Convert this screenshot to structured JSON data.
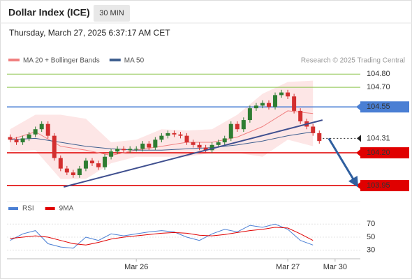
{
  "header": {
    "title": "Dollar Index (ICE)",
    "timeframe": "30 MIN",
    "timestamp": "Thursday, March 27, 2025 6:37:17 AM CET"
  },
  "chart_data": [
    {
      "type": "candlestick",
      "watermark": "Research © 2025 Trading Central",
      "up_color": "#2e7d32",
      "down_color": "#d32f2f",
      "xlim": [
        -1,
        111
      ],
      "ylim": [
        103.86,
        104.86
      ],
      "xticks": [
        {
          "value": 40,
          "label": "Mar 26"
        },
        {
          "value": 88,
          "label": "Mar 27"
        },
        {
          "value": 103,
          "label": "Mar 30"
        }
      ],
      "x": [
        0,
        2,
        4,
        6,
        8,
        10,
        12,
        14,
        16,
        18,
        20,
        22,
        24,
        26,
        28,
        30,
        32,
        34,
        36,
        38,
        40,
        42,
        44,
        46,
        48,
        50,
        52,
        54,
        56,
        58,
        60,
        62,
        64,
        66,
        68,
        70,
        72,
        74,
        76,
        78,
        80,
        82,
        84,
        86,
        88,
        90,
        92,
        94,
        96,
        98
      ],
      "open": [
        104.32,
        104.3,
        104.28,
        104.31,
        104.34,
        104.38,
        104.42,
        104.33,
        104.16,
        104.08,
        104.05,
        104.03,
        104.08,
        104.14,
        104.12,
        104.09,
        104.17,
        104.21,
        104.23,
        104.22,
        104.23,
        104.23,
        104.27,
        104.24,
        104.3,
        104.33,
        104.35,
        104.34,
        104.33,
        104.28,
        104.26,
        104.24,
        104.22,
        104.26,
        104.28,
        104.31,
        104.42,
        104.38,
        104.45,
        104.54,
        104.56,
        104.58,
        104.55,
        104.64,
        104.66,
        104.63,
        104.52,
        104.44,
        104.4,
        104.35
      ],
      "high": [
        104.34,
        104.32,
        104.33,
        104.36,
        104.4,
        104.44,
        104.44,
        104.35,
        104.18,
        104.1,
        104.07,
        104.1,
        104.16,
        104.16,
        104.14,
        104.19,
        104.23,
        104.25,
        104.25,
        104.25,
        104.25,
        104.29,
        104.29,
        104.32,
        104.35,
        104.37,
        104.37,
        104.36,
        104.35,
        104.3,
        104.28,
        104.26,
        104.28,
        104.3,
        104.33,
        104.44,
        104.44,
        104.47,
        104.56,
        104.58,
        104.6,
        104.6,
        104.66,
        104.68,
        104.68,
        104.65,
        104.54,
        104.46,
        104.42,
        104.37
      ],
      "low": [
        104.28,
        104.26,
        104.26,
        104.29,
        104.32,
        104.36,
        104.31,
        104.14,
        104.06,
        104.03,
        104.01,
        104.01,
        104.06,
        104.1,
        104.07,
        104.07,
        104.15,
        104.19,
        104.2,
        104.2,
        104.21,
        104.21,
        104.22,
        104.22,
        104.28,
        104.31,
        104.32,
        104.31,
        104.26,
        104.24,
        104.22,
        104.2,
        104.2,
        104.24,
        104.26,
        104.29,
        104.36,
        104.36,
        104.43,
        104.52,
        104.54,
        104.53,
        104.53,
        104.62,
        104.61,
        104.5,
        104.42,
        104.38,
        104.33,
        104.27
      ],
      "close": [
        104.3,
        104.28,
        104.31,
        104.34,
        104.38,
        104.42,
        104.33,
        104.16,
        104.08,
        104.05,
        104.03,
        104.08,
        104.14,
        104.12,
        104.09,
        104.17,
        104.21,
        104.23,
        104.22,
        104.23,
        104.23,
        104.27,
        104.24,
        104.3,
        104.33,
        104.35,
        104.34,
        104.33,
        104.28,
        104.26,
        104.24,
        104.22,
        104.26,
        104.28,
        104.31,
        104.42,
        104.38,
        104.45,
        104.54,
        104.56,
        104.58,
        104.55,
        104.64,
        104.66,
        104.63,
        104.52,
        104.44,
        104.4,
        104.35,
        104.29
      ],
      "overlays": [
        {
          "name": "MA 20 + Bollinger Bands",
          "color": "#f08080",
          "band_color": "#fde0e0",
          "x": [
            0,
            8,
            16,
            24,
            32,
            40,
            48,
            56,
            64,
            72,
            80,
            88,
            96
          ],
          "values": [
            104.3,
            104.36,
            104.25,
            104.22,
            104.18,
            104.22,
            104.25,
            104.28,
            104.28,
            104.32,
            104.4,
            104.52,
            104.5
          ],
          "upper": [
            104.38,
            104.49,
            104.49,
            104.46,
            104.28,
            104.3,
            104.38,
            104.37,
            104.38,
            104.49,
            104.65,
            104.74,
            104.75
          ],
          "lower": [
            104.21,
            104.22,
            104.0,
            104.0,
            104.12,
            104.17,
            104.17,
            104.17,
            104.2,
            104.2,
            104.17,
            104.3,
            104.25
          ]
        },
        {
          "name": "MA 50",
          "color": "#3f5f8f",
          "x": [
            0,
            8,
            16,
            24,
            32,
            40,
            48,
            56,
            64,
            72,
            80,
            88,
            96
          ],
          "values": [
            104.3,
            104.31,
            104.28,
            104.25,
            104.23,
            104.22,
            104.22,
            104.23,
            104.24,
            104.26,
            104.29,
            104.33,
            104.36
          ]
        }
      ],
      "trendline": {
        "color": "#3f4f8f",
        "x": [
          17,
          99
        ],
        "values": [
          103.94,
          104.45
        ]
      },
      "arrow": {
        "color": "#2f5f9f",
        "x": [
          101,
          110
        ],
        "values": [
          104.31,
          103.95
        ]
      },
      "levels": [
        {
          "value": 104.8,
          "label": "104.80",
          "color": "#8bc34a",
          "label_style": "text"
        },
        {
          "value": 104.7,
          "label": "104.70",
          "color": "#8bc34a",
          "label_style": "text"
        },
        {
          "value": 104.55,
          "label": "104.55",
          "color": "#4a7fd4",
          "label_style": "box"
        },
        {
          "value": 104.31,
          "label": "104.31",
          "color": "#222222",
          "label_style": "pointer",
          "dash": true
        },
        {
          "value": 104.2,
          "label": "104.20",
          "color": "#e00000",
          "label_style": "box"
        },
        {
          "value": 103.95,
          "label": "103.95",
          "color": "#e00000",
          "label_style": "box"
        }
      ]
    },
    {
      "type": "line",
      "xlim": [
        -1,
        111
      ],
      "ylim": [
        18,
        82
      ],
      "yticks": [
        70,
        50,
        30
      ],
      "x": [
        0,
        4,
        8,
        12,
        16,
        20,
        24,
        28,
        32,
        36,
        40,
        44,
        48,
        52,
        56,
        60,
        64,
        68,
        72,
        76,
        80,
        84,
        88,
        92,
        96
      ],
      "series": [
        {
          "name": "RSI",
          "color": "#4a7fd4",
          "values": [
            45,
            55,
            60,
            40,
            35,
            33,
            50,
            45,
            55,
            52,
            55,
            58,
            60,
            58,
            50,
            45,
            55,
            62,
            58,
            68,
            65,
            70,
            62,
            45,
            38
          ]
        },
        {
          "name": "9MA",
          "color": "#e00000",
          "values": [
            48,
            50,
            52,
            50,
            45,
            40,
            38,
            42,
            47,
            50,
            52,
            54,
            56,
            57,
            56,
            53,
            52,
            54,
            57,
            60,
            62,
            65,
            64,
            55,
            45
          ]
        }
      ]
    }
  ]
}
